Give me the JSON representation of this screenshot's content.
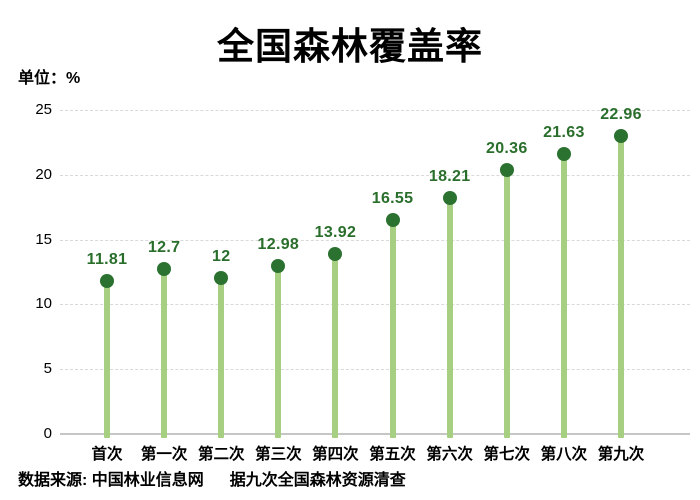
{
  "title": "全国森林覆盖率",
  "unit_label": "单位：%",
  "source": {
    "prefix": "数据来源: 中国林业信息网",
    "suffix": "据九次全国森林资源清查"
  },
  "colors": {
    "stem": "#a7cf82",
    "dot": "#2b7130",
    "value_label": "#2a6e2c",
    "gridline": "#d9d9d9",
    "axis_line": "#c6c6c6",
    "text": "#000000",
    "background": "#ffffff"
  },
  "chart_data": {
    "type": "bar",
    "subtype": "lollipop",
    "title": "全国森林覆盖率",
    "unit": "%",
    "categories": [
      "首次",
      "第一次",
      "第二次",
      "第三次",
      "第四次",
      "第五次",
      "第六次",
      "第七次",
      "第八次",
      "第九次"
    ],
    "values": [
      11.81,
      12.7,
      12,
      12.98,
      13.92,
      16.55,
      18.21,
      20.36,
      21.63,
      22.96
    ],
    "value_labels": [
      "11.81",
      "12.7",
      "12",
      "12.98",
      "13.92",
      "16.55",
      "18.21",
      "20.36",
      "21.63",
      "22.96"
    ],
    "xlabel": "",
    "ylabel": "单位：%",
    "ylim": [
      0,
      25
    ],
    "yticks": [
      0,
      5,
      10,
      15,
      20,
      25
    ],
    "grid": "horizontal-dashed",
    "legend": "none"
  }
}
